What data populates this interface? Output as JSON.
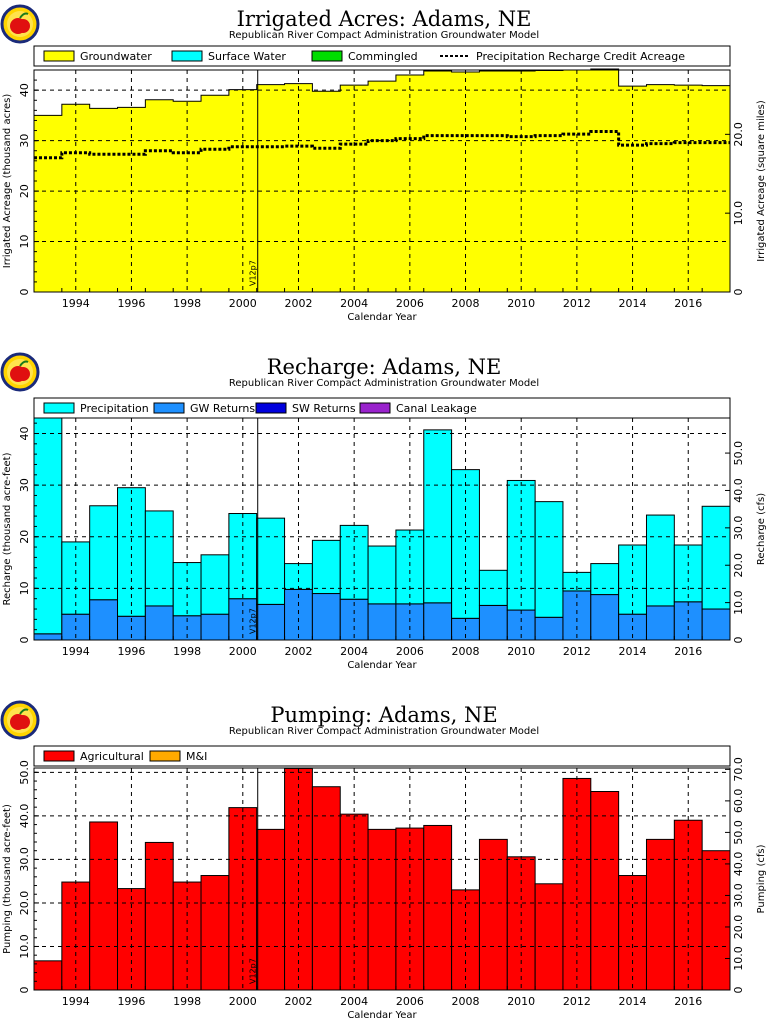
{
  "colors": {
    "groundwater": "#ffff00",
    "surface_water": "#00ffff",
    "commingled": "#00dd00",
    "precipitation": "#00ffff",
    "gw_returns": "#1e90ff",
    "sw_returns": "#0000dd",
    "canal_leakage": "#9922cc",
    "agricultural": "#ff0000",
    "mi": "#ffaa00"
  },
  "logo": {
    "icon": "apple-logo-icon"
  },
  "chart_data": [
    {
      "type": "area",
      "title": "Irrigated Acres: Adams, NE",
      "subtitle": "Republican River Compact Administration Groundwater Model",
      "xlabel": "Calendar Year",
      "ylabel": "Irrigated Acreage (thousand acres)",
      "ylabel_right": "Irrigated Acreage (square miles)",
      "xlim": [
        1993,
        2018
      ],
      "ylim": [
        0,
        44
      ],
      "y_ticks": [
        "0",
        "10",
        "20",
        "30",
        "40"
      ],
      "right_ticks": [
        "0",
        "10.0",
        "20.0",
        "30.0",
        "40.0",
        "50.0",
        "60.0"
      ],
      "right_scale": 0.64,
      "grid": true,
      "legend_position": "top",
      "legend": [
        "Groundwater",
        "Surface Water",
        "Commingled",
        "Precipitation Recharge Credit Acreage"
      ],
      "x_ticks": [
        "1994",
        "1996",
        "1998",
        "2000",
        "2002",
        "2004",
        "2006",
        "2008",
        "2010",
        "2012",
        "2014",
        "2016"
      ],
      "marker": {
        "x": 2001,
        "label": "V12p7"
      },
      "years": [
        1993,
        1994,
        1995,
        1996,
        1997,
        1998,
        1999,
        2000,
        2001,
        2002,
        2003,
        2004,
        2005,
        2006,
        2007,
        2008,
        2009,
        2010,
        2011,
        2012,
        2013,
        2014,
        2015,
        2016,
        2017
      ],
      "series": [
        {
          "name": "Groundwater",
          "values": [
            35.0,
            37.2,
            36.4,
            36.6,
            38.1,
            37.8,
            39.0,
            40.1,
            41.1,
            41.3,
            39.8,
            41.0,
            41.8,
            43.0,
            43.8,
            43.6,
            43.8,
            43.8,
            43.9,
            44.0,
            44.2,
            40.8,
            41.1,
            41.0,
            40.9
          ]
        },
        {
          "name": "Surface Water",
          "values": [
            0,
            0,
            0,
            0,
            0,
            0,
            0,
            0,
            0,
            0,
            0,
            0,
            0,
            0,
            0,
            0,
            0,
            0,
            0,
            0,
            0,
            0,
            0,
            0,
            0
          ]
        },
        {
          "name": "Commingled",
          "values": [
            0,
            0,
            0,
            0,
            0,
            0,
            0,
            0,
            0,
            0,
            0,
            0,
            0,
            0,
            0,
            0,
            0,
            0,
            0,
            0,
            0,
            0,
            0,
            0,
            0
          ]
        },
        {
          "name": "Precipitation Recharge Credit Acreage",
          "values": [
            26.6,
            27.6,
            27.3,
            27.3,
            28.0,
            27.6,
            28.3,
            28.8,
            28.8,
            28.9,
            28.5,
            29.3,
            30.0,
            30.4,
            31.0,
            31.0,
            31.0,
            30.8,
            31.0,
            31.3,
            31.8,
            29.1,
            29.4,
            29.6,
            29.6
          ]
        }
      ]
    },
    {
      "type": "bar",
      "title": "Recharge: Adams, NE",
      "subtitle": "Republican River Compact Administration Groundwater Model",
      "xlabel": "Calendar Year",
      "ylabel": "Recharge (thousand acre-feet)",
      "ylabel_right": "Recharge (cfs)",
      "xlim": [
        1993,
        2018
      ],
      "ylim": [
        0,
        43
      ],
      "y_ticks": [
        "0",
        "10",
        "20",
        "30",
        "40"
      ],
      "right_ticks": [
        "0",
        "10.0",
        "20.0",
        "30.0",
        "40.0",
        "50.0",
        "60.0"
      ],
      "right_scale": 1.381,
      "grid": true,
      "legend_position": "top",
      "legend": [
        "Precipitation",
        "GW Returns",
        "SW Returns",
        "Canal Leakage"
      ],
      "x_ticks": [
        "1994",
        "1996",
        "1998",
        "2000",
        "2002",
        "2004",
        "2006",
        "2008",
        "2010",
        "2012",
        "2014",
        "2016"
      ],
      "marker": {
        "x": 2001,
        "label": "V12p7"
      },
      "years": [
        1993,
        1994,
        1995,
        1996,
        1997,
        1998,
        1999,
        2000,
        2001,
        2002,
        2003,
        2004,
        2005,
        2006,
        2007,
        2008,
        2009,
        2010,
        2011,
        2012,
        2013,
        2014,
        2015,
        2016,
        2017
      ],
      "series": [
        {
          "name": "Precipitation",
          "values": [
            41.8,
            14.0,
            18.2,
            24.9,
            18.4,
            10.3,
            11.5,
            16.5,
            16.7,
            5.0,
            10.3,
            14.3,
            11.2,
            14.3,
            33.5,
            28.8,
            6.8,
            25.1,
            22.4,
            3.6,
            6.0,
            13.4,
            17.6,
            11.0,
            19.9
          ]
        },
        {
          "name": "GW Returns",
          "values": [
            1.2,
            5.0,
            7.8,
            4.6,
            6.6,
            4.7,
            5.0,
            8.0,
            6.9,
            9.8,
            9.0,
            7.9,
            7.0,
            7.0,
            7.2,
            4.2,
            6.7,
            5.8,
            4.4,
            9.5,
            8.8,
            5.0,
            6.6,
            7.4,
            6.0
          ]
        },
        {
          "name": "SW Returns",
          "values": [
            0,
            0,
            0,
            0,
            0,
            0,
            0,
            0,
            0,
            0,
            0,
            0,
            0,
            0,
            0,
            0,
            0,
            0,
            0,
            0,
            0,
            0,
            0,
            0,
            0
          ]
        },
        {
          "name": "Canal Leakage",
          "values": [
            0,
            0,
            0,
            0,
            0,
            0,
            0,
            0,
            0,
            0,
            0,
            0,
            0,
            0,
            0,
            0,
            0,
            0,
            0,
            0,
            0,
            0,
            0,
            0,
            0
          ]
        }
      ]
    },
    {
      "type": "bar",
      "title": "Pumping: Adams, NE",
      "subtitle": "Republican River Compact Administration Groundwater Model",
      "xlabel": "Calendar Year",
      "ylabel": "Pumping (thousand acre-feet)",
      "ylabel_right": "Pumping (cfs)",
      "xlim": [
        1993,
        2018
      ],
      "ylim": [
        0,
        51
      ],
      "y_ticks": [
        "0",
        "10.0",
        "20.0",
        "30.0",
        "40.0",
        "50.0"
      ],
      "right_ticks": [
        "0",
        "10.0",
        "20.0",
        "30.0",
        "40.0",
        "50.0",
        "60.0",
        "70.0"
      ],
      "right_scale": 1.381,
      "grid": true,
      "legend_position": "top",
      "legend": [
        "Agricultural",
        "M&I"
      ],
      "x_ticks": [
        "1994",
        "1996",
        "1998",
        "2000",
        "2002",
        "2004",
        "2006",
        "2008",
        "2010",
        "2012",
        "2014",
        "2016"
      ],
      "marker": {
        "x": 2001,
        "label": "V12p7"
      },
      "years": [
        1993,
        1994,
        1995,
        1996,
        1997,
        1998,
        1999,
        2000,
        2001,
        2002,
        2003,
        2004,
        2005,
        2006,
        2007,
        2008,
        2009,
        2010,
        2011,
        2012,
        2013,
        2014,
        2015,
        2016,
        2017
      ],
      "series": [
        {
          "name": "Agricultural",
          "values": [
            6.7,
            24.8,
            38.6,
            23.3,
            33.9,
            24.8,
            26.3,
            41.9,
            36.9,
            50.9,
            46.7,
            40.4,
            36.9,
            37.2,
            37.8,
            23.0,
            34.6,
            30.6,
            24.4,
            48.6,
            45.6,
            26.3,
            34.6,
            39.0,
            32.0
          ]
        },
        {
          "name": "M&I",
          "values": [
            0,
            0,
            0,
            0,
            0,
            0,
            0,
            0,
            0,
            0,
            0,
            0,
            0,
            0,
            0,
            0,
            0,
            0,
            0,
            0,
            0,
            0,
            0,
            0,
            0
          ]
        }
      ]
    }
  ]
}
